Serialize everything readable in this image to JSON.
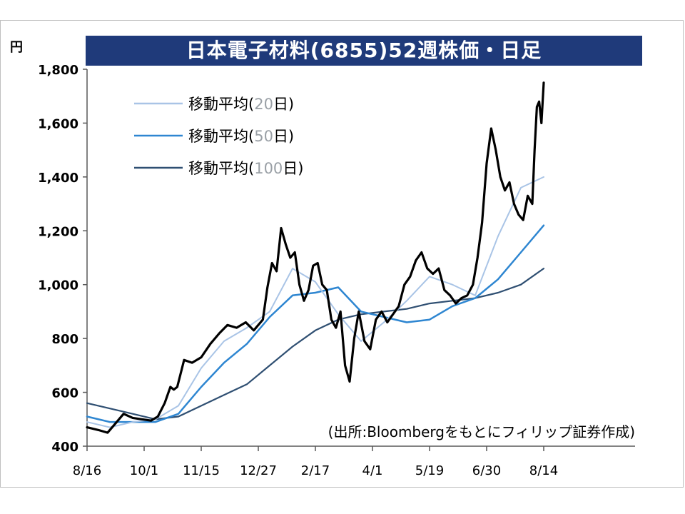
{
  "chart_data": {
    "type": "line",
    "title": "日本電子材料(6855)52週株価・日足",
    "unit": "円",
    "ylim": [
      400,
      1800
    ],
    "yticks": [
      400,
      600,
      800,
      1000,
      1200,
      1400,
      1600,
      1800
    ],
    "ytick_labels": [
      "400",
      "600",
      "800",
      "1,000",
      "1,200",
      "1,400",
      "1,600",
      "1,800"
    ],
    "xlim": [
      0,
      48
    ],
    "xticks": [
      0,
      5,
      10,
      15,
      20,
      25,
      30,
      35,
      40
    ],
    "xtick_labels": [
      "8/16",
      "10/1",
      "11/15",
      "12/27",
      "2/17",
      "4/1",
      "5/19",
      "6/30",
      "8/14"
    ],
    "source": "(出所:Bloombergをもとにフィリップ証券作成)",
    "legend": [
      {
        "prefix": "移動平均(",
        "num": "20",
        "suffix": "日)",
        "color": "#a9c4e6"
      },
      {
        "prefix": "移動平均(",
        "num": "50",
        "suffix": "日)",
        "color": "#2e86d1"
      },
      {
        "prefix": "移動平均(",
        "num": "100",
        "suffix": "日)",
        "color": "#2f4f72"
      }
    ],
    "series": [
      {
        "role": "price",
        "color": "#000000",
        "x": [
          0,
          1,
          1.8,
          2.6,
          3.2,
          4,
          4.8,
          5.6,
          6.2,
          6.8,
          7.3,
          7.6,
          7.9,
          8.5,
          9.2,
          10,
          10.8,
          11.6,
          12.3,
          13.1,
          13.9,
          14.6,
          15.4,
          15.8,
          16.2,
          16.6,
          17,
          17.4,
          17.8,
          18.2,
          18.6,
          19,
          19.4,
          19.8,
          20.2,
          20.6,
          21,
          21.4,
          21.8,
          22.2,
          22.6,
          23,
          23.4,
          23.8,
          24.3,
          24.8,
          25.3,
          25.8,
          26.3,
          26.8,
          27.3,
          27.8,
          28.3,
          28.8,
          29.3,
          29.8,
          30.3,
          30.8,
          31.3,
          31.8,
          32.3,
          32.8,
          33.3,
          33.8,
          34.2,
          34.6,
          35,
          35.4,
          35.8,
          36.2,
          36.6,
          37,
          37.4,
          37.8,
          38.2,
          38.6,
          39,
          39.2,
          39.4,
          39.6,
          39.8,
          40
        ],
        "y": [
          470,
          460,
          450,
          490,
          520,
          505,
          500,
          495,
          510,
          560,
          620,
          610,
          620,
          720,
          710,
          730,
          780,
          820,
          850,
          840,
          860,
          830,
          870,
          990,
          1080,
          1050,
          1210,
          1150,
          1100,
          1120,
          1000,
          940,
          980,
          1070,
          1080,
          1000,
          980,
          870,
          840,
          900,
          700,
          640,
          800,
          900,
          790,
          760,
          870,
          900,
          860,
          890,
          920,
          1000,
          1030,
          1090,
          1120,
          1060,
          1040,
          1060,
          980,
          960,
          930,
          950,
          960,
          1000,
          1100,
          1230,
          1450,
          1580,
          1500,
          1400,
          1350,
          1380,
          1300,
          1260,
          1240,
          1330,
          1300,
          1500,
          1660,
          1680,
          1600,
          1750
        ]
      },
      {
        "role": "ma20",
        "color": "#a9c4e6",
        "x": [
          0,
          2,
          4,
          6,
          8,
          10,
          12,
          14,
          16,
          18,
          20,
          22,
          24,
          26,
          28,
          30,
          32,
          34,
          36,
          38,
          40
        ],
        "y": [
          490,
          470,
          490,
          500,
          550,
          690,
          790,
          840,
          900,
          1060,
          1010,
          890,
          790,
          860,
          940,
          1030,
          1000,
          960,
          1180,
          1360,
          1400
        ]
      },
      {
        "role": "ma50",
        "color": "#2e86d1",
        "x": [
          0,
          2,
          4,
          6,
          8,
          10,
          12,
          14,
          16,
          18,
          20,
          22,
          24,
          26,
          28,
          30,
          32,
          34,
          36,
          38,
          40
        ],
        "y": [
          510,
          490,
          490,
          490,
          520,
          620,
          710,
          780,
          880,
          960,
          970,
          990,
          900,
          880,
          860,
          870,
          920,
          950,
          1020,
          1120,
          1220
        ]
      },
      {
        "role": "ma100",
        "color": "#2f4f72",
        "x": [
          0,
          2,
          4,
          6,
          8,
          10,
          12,
          14,
          16,
          18,
          20,
          22,
          24,
          26,
          28,
          30,
          32,
          34,
          36,
          38,
          40
        ],
        "y": [
          560,
          540,
          520,
          500,
          510,
          550,
          590,
          630,
          700,
          770,
          830,
          870,
          890,
          900,
          910,
          930,
          940,
          950,
          970,
          1000,
          1060
        ]
      }
    ]
  }
}
